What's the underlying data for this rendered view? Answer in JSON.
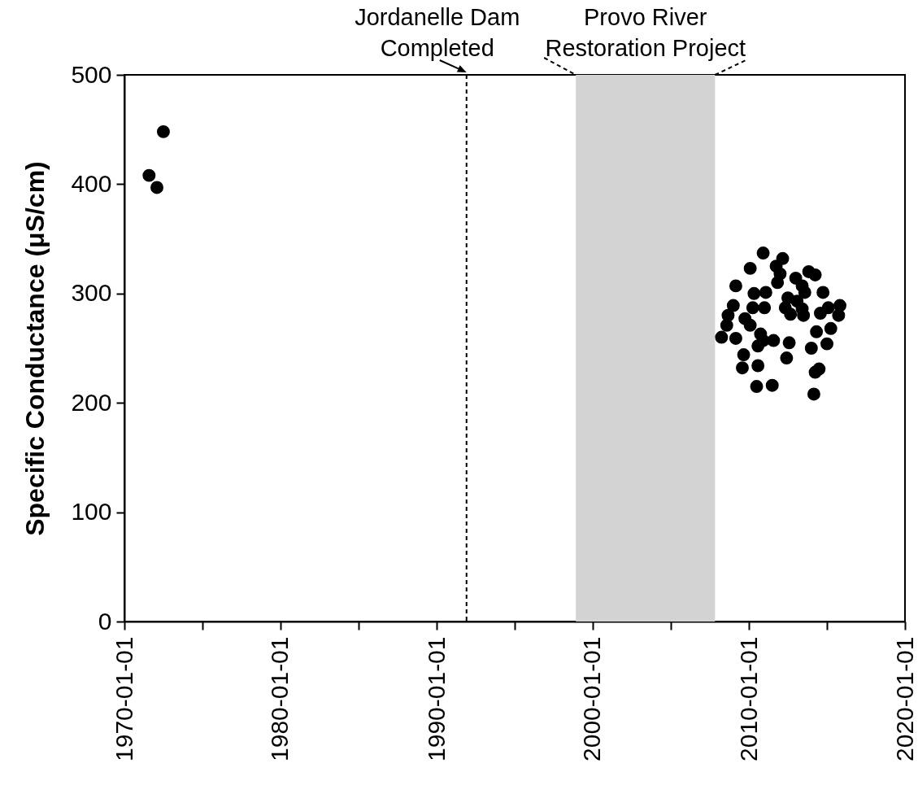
{
  "chart_data": {
    "type": "scatter",
    "ylabel": "Specific Conductance (μS/cm)",
    "x": [
      "1971-08",
      "1972-02",
      "1972-07",
      "2010-12",
      "2012-03",
      "2010-02",
      "2011-10",
      "2012-01",
      "2013-11",
      "2014-04",
      "2013-01",
      "2011-11",
      "2009-03",
      "2010-05",
      "2011-02",
      "2013-06",
      "2014-10",
      "2013-08",
      "2012-07",
      "2013-02",
      "2009-01",
      "2010-04",
      "2011-01",
      "2012-05",
      "2013-06",
      "2015-11",
      "2015-02",
      "2014-08",
      "2008-09",
      "2009-10",
      "2012-09",
      "2013-07",
      "2015-10",
      "2008-08",
      "2010-02",
      "2015-04",
      "2008-04",
      "2009-03",
      "2010-10",
      "2014-05",
      "2010-08",
      "2011-08",
      "2010-12",
      "2012-08",
      "2015-01",
      "2014-01",
      "2009-09",
      "2012-06",
      "2009-08",
      "2010-08",
      "2014-07",
      "2014-04",
      "2010-07",
      "2011-07",
      "2014-03"
    ],
    "series": [
      {
        "color": "#000000",
        "values": [
          408,
          397,
          448,
          337,
          332,
          323,
          325,
          318,
          320,
          317,
          314,
          310,
          307,
          300,
          301,
          307,
          301,
          301,
          296,
          293,
          289,
          287,
          287,
          287,
          286,
          289,
          287,
          282,
          280,
          277,
          281,
          280,
          280,
          271,
          271,
          268,
          260,
          259,
          263,
          265,
          252,
          257,
          257,
          255,
          254,
          250,
          244,
          241,
          232,
          234,
          231,
          228,
          215,
          216,
          208
        ]
      }
    ],
    "marker": "circle",
    "xlim": [
      "1970-01-01",
      "2020-01-01"
    ],
    "xticks": [
      "1970-01-01",
      {
        "value": "1975-01-01",
        "label": null
      },
      "1980-01-01",
      {
        "value": "1985-01-01",
        "label": null
      },
      "1990-01-01",
      {
        "value": "1995-01-01",
        "label": null
      },
      "2000-01-01",
      {
        "value": "2005-01-01",
        "label": null
      },
      "2010-01-01",
      {
        "value": "2015-01-01",
        "label": null
      },
      "2020-01-01"
    ],
    "ylim": [
      0,
      500
    ],
    "yticks": [
      0,
      100,
      200,
      300,
      400,
      500
    ],
    "ref_lines": [
      {
        "axis": "x",
        "value": "1991-12",
        "label": "Jordanelle Dam Completed",
        "color": "#000000",
        "line_style": "dashed"
      }
    ],
    "bands": [
      {
        "axis": "x",
        "from": "1998-12",
        "to": "2007-11",
        "label": "Provo River Restoration Project",
        "color": "#d3d3d3"
      }
    ]
  }
}
